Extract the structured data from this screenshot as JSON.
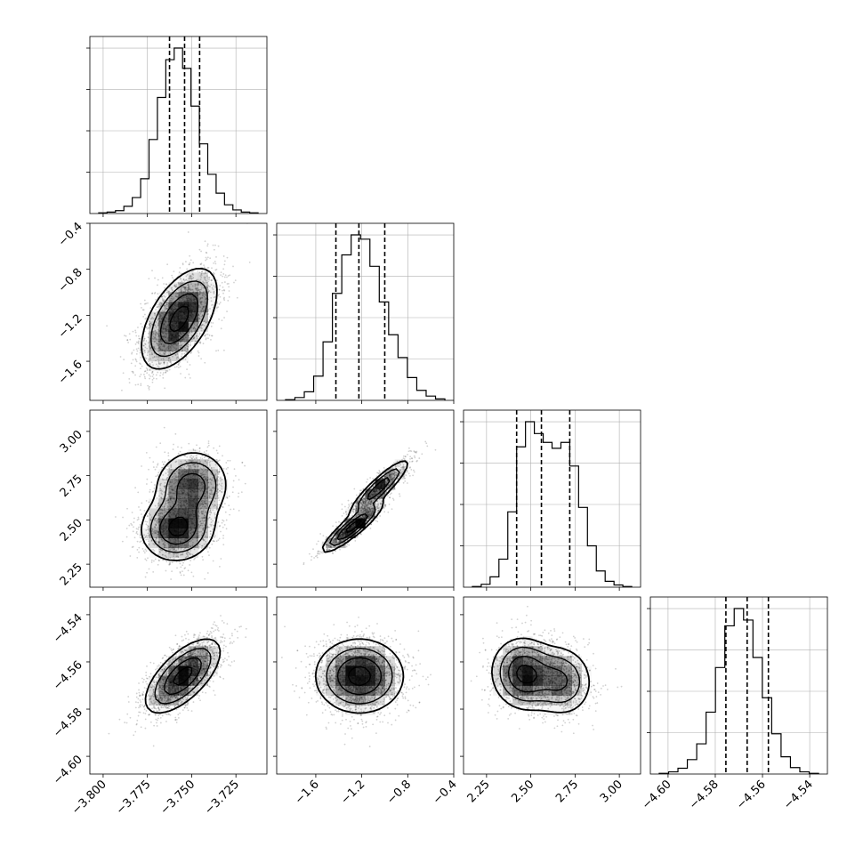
{
  "chart_data": {
    "type": "corner",
    "parameters": [
      {
        "ticks": [
          "−3.800",
          "−3.775",
          "−3.750",
          "−3.725"
        ],
        "tick_values": [
          -3.8,
          -3.775,
          -3.75,
          -3.725
        ],
        "range": [
          -3.8075,
          -3.7075
        ],
        "quantiles": [
          -3.7625,
          -3.754,
          -3.7455
        ]
      },
      {
        "ticks": [
          "−1.6",
          "−1.2",
          "−0.8",
          "−0.4"
        ],
        "tick_values": [
          -1.6,
          -1.2,
          -0.8,
          -0.4
        ],
        "range": [
          -1.94,
          -0.4
        ],
        "quantiles": [
          -1.425,
          -1.225,
          -1.0
        ]
      },
      {
        "ticks": [
          "2.25",
          "2.50",
          "2.75",
          "3.00"
        ],
        "tick_values": [
          2.25,
          2.5,
          2.75,
          3.0
        ],
        "range": [
          2.12,
          3.12
        ],
        "quantiles": [
          2.42,
          2.56,
          2.72
        ]
      },
      {
        "ticks": [
          "−4.60",
          "−4.58",
          "−4.56",
          "−4.54"
        ],
        "tick_values": [
          -4.6,
          -4.58,
          -4.56,
          -4.54
        ],
        "range": [
          -4.6075,
          -4.5325
        ],
        "quantiles": [
          -4.5755,
          -4.5665,
          -4.5575
        ]
      }
    ],
    "histograms": [
      [
        1,
        2,
        4,
        10,
        22,
        48,
        102,
        160,
        212,
        228,
        200,
        148,
        96,
        54,
        28,
        12,
        5,
        2,
        1
      ],
      [
        1,
        4,
        12,
        34,
        82,
        150,
        204,
        232,
        226,
        188,
        138,
        92,
        60,
        32,
        14,
        6,
        2
      ],
      [
        1,
        4,
        14,
        38,
        102,
        190,
        224,
        208,
        196,
        188,
        196,
        164,
        108,
        56,
        22,
        8,
        3,
        1
      ],
      [
        1,
        3,
        8,
        20,
        42,
        86,
        148,
        206,
        230,
        214,
        162,
        106,
        56,
        24,
        9,
        3,
        1
      ]
    ],
    "pairs": [
      {
        "row": 1,
        "col": 0,
        "components": [
          {
            "mx": -3.757,
            "my": -1.23,
            "sx": 0.0106,
            "sy": 0.218,
            "rho": 0.55,
            "w": 1.0
          }
        ]
      },
      {
        "row": 2,
        "col": 0,
        "components": [
          {
            "mx": -3.758,
            "my": 2.45,
            "sx": 0.0102,
            "sy": 0.09,
            "rho": 0.05,
            "w": 0.55
          },
          {
            "mx": -3.75,
            "my": 2.69,
            "sx": 0.0102,
            "sy": 0.1,
            "rho": 0.05,
            "w": 0.45
          }
        ]
      },
      {
        "row": 2,
        "col": 1,
        "components": [
          {
            "mx": -1.28,
            "my": 2.46,
            "sx": 0.13,
            "sy": 0.07,
            "rho": 0.9,
            "w": 0.55
          },
          {
            "mx": -1.05,
            "my": 2.68,
            "sx": 0.13,
            "sy": 0.08,
            "rho": 0.9,
            "w": 0.45
          }
        ]
      },
      {
        "row": 3,
        "col": 0,
        "components": [
          {
            "mx": -3.755,
            "my": -4.566,
            "sx": 0.0105,
            "sy": 0.0078,
            "rho": 0.65,
            "w": 1.0
          }
        ]
      },
      {
        "row": 3,
        "col": 1,
        "components": [
          {
            "mx": -1.22,
            "my": -4.566,
            "sx": 0.19,
            "sy": 0.0078,
            "rho": 0.0,
            "w": 1.0
          }
        ]
      },
      {
        "row": 3,
        "col": 2,
        "components": [
          {
            "mx": 2.46,
            "my": -4.565,
            "sx": 0.09,
            "sy": 0.0075,
            "rho": -0.05,
            "w": 0.6
          },
          {
            "mx": 2.67,
            "my": -4.568,
            "sx": 0.09,
            "sy": 0.0075,
            "rho": -0.05,
            "w": 0.4
          }
        ]
      }
    ],
    "grid": true,
    "colors": {
      "axes": "#000000",
      "grid": "#b0b0b0",
      "points": "#000000",
      "contour": "#000000"
    }
  }
}
